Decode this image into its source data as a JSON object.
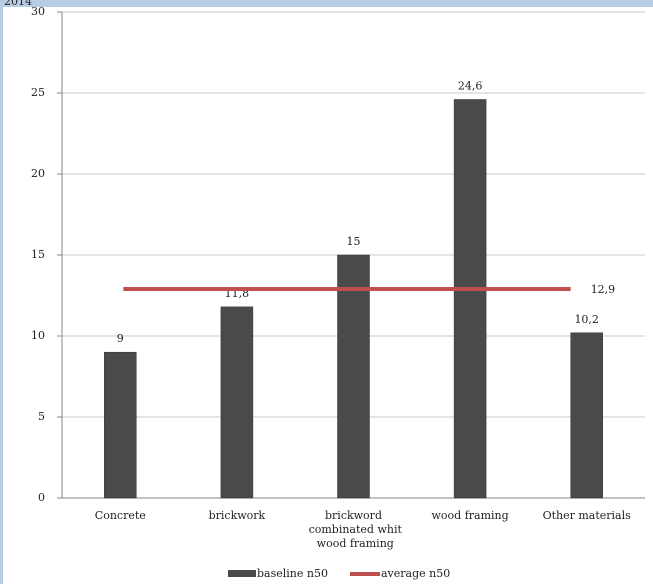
{
  "header": {
    "text": "2014"
  },
  "chart_data": {
    "type": "bar",
    "categories": [
      "Concrete",
      "brickwork",
      "brickword combinated whit wood framing",
      "wood framing",
      "Other materials"
    ],
    "series": [
      {
        "name": "baseline n50",
        "color": "#4a4a4a",
        "values": [
          9,
          11.8,
          15,
          24.6,
          10.2
        ],
        "value_labels": [
          "9",
          "11,8",
          "15",
          "24,6",
          "10,2"
        ]
      }
    ],
    "average": {
      "name": "average n50",
      "color": "#c0504d",
      "value": 12.9,
      "value_label": "12,9"
    },
    "ylim": [
      0,
      30
    ],
    "yticks": [
      0,
      5,
      10,
      15,
      20,
      25,
      30
    ],
    "grid": true,
    "legend": "bottom"
  }
}
